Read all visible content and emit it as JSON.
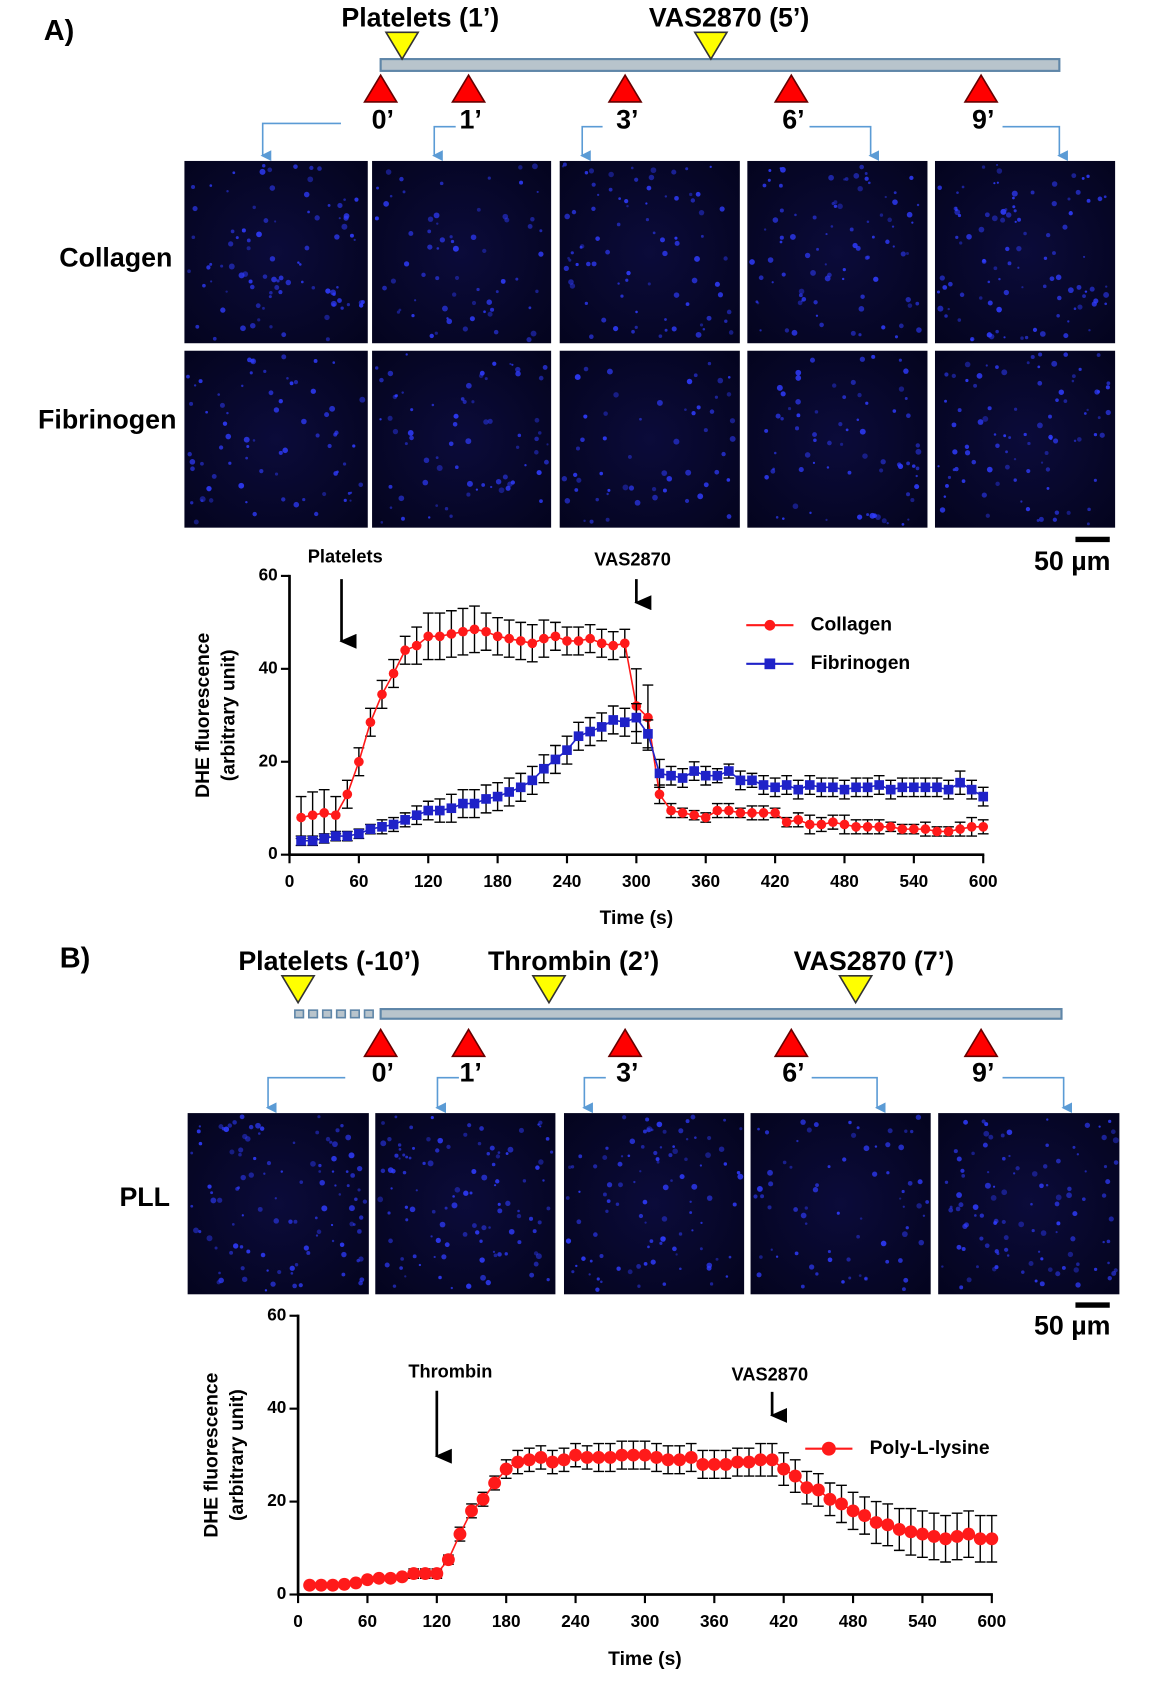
{
  "panels": [
    {
      "label": "A)",
      "events": [
        "Platelets (1’)",
        "VAS2870 (5’)"
      ],
      "timepoints": [
        "0’",
        "1’",
        "3’",
        "6’",
        "9’"
      ],
      "rows": [
        "Collagen",
        "Fibrinogen"
      ],
      "scale_bar": "50 µm"
    },
    {
      "label": "B)",
      "events": [
        "Platelets (-10’)",
        "Thrombin (2’)",
        "VAS2870 (7’)"
      ],
      "timepoints": [
        "0’",
        "1’",
        "3’",
        "6’",
        "9’"
      ],
      "rows": [
        "PLL"
      ],
      "scale_bar": "50 µm"
    }
  ],
  "chart_data": [
    {
      "type": "line",
      "x_label": "Time (s)",
      "y_label": [
        "DHE fluorescence",
        "(arbitrary unit)"
      ],
      "x": [
        10,
        20,
        30,
        40,
        50,
        60,
        70,
        80,
        90,
        100,
        110,
        120,
        130,
        140,
        150,
        160,
        170,
        180,
        190,
        200,
        210,
        220,
        230,
        240,
        250,
        260,
        270,
        280,
        290,
        300,
        310,
        320,
        330,
        340,
        350,
        360,
        370,
        380,
        390,
        400,
        410,
        420,
        430,
        440,
        450,
        460,
        470,
        480,
        490,
        500,
        510,
        520,
        530,
        540,
        550,
        560,
        570,
        580,
        590,
        600
      ],
      "series": [
        {
          "name": "Collagen",
          "color": "#ff1a1a",
          "marker": "circle",
          "values": [
            8,
            8.5,
            9,
            8.5,
            13,
            20,
            28.5,
            34.5,
            39,
            44,
            45,
            47,
            47,
            47.5,
            48,
            48.5,
            48,
            47,
            46.5,
            46,
            45.5,
            46.5,
            47,
            46,
            46,
            46.5,
            45.5,
            45,
            45.5,
            32,
            29.5,
            13,
            9.5,
            9,
            8.5,
            8,
            9.5,
            9.5,
            9,
            9,
            9,
            9,
            7,
            7.5,
            6.5,
            6.5,
            7,
            6.5,
            6,
            6,
            6,
            6,
            5.5,
            5.5,
            5.5,
            5,
            5,
            5.5,
            6,
            6
          ],
          "errors": [
            4.5,
            5,
            5,
            4,
            3,
            3,
            3,
            3,
            3,
            3,
            4,
            5,
            5,
            5,
            5,
            5,
            4,
            4,
            4,
            4,
            4,
            4,
            3,
            3,
            3,
            3,
            3,
            3,
            3,
            8,
            7,
            2,
            1.5,
            1,
            1,
            1,
            1.5,
            1.5,
            1,
            1.5,
            1.5,
            1,
            1,
            1.5,
            2,
            1.5,
            1.5,
            2,
            1.5,
            1.5,
            1.5,
            1,
            1,
            1,
            1.5,
            1,
            1,
            1.5,
            2,
            1.5
          ]
        },
        {
          "name": "Fibrinogen",
          "color": "#1f22c8",
          "marker": "square",
          "values": [
            3,
            3,
            3.5,
            4,
            4,
            4.5,
            5.5,
            6,
            6.5,
            7.5,
            8.5,
            9.5,
            9.5,
            10,
            11,
            11,
            12,
            12.5,
            13.5,
            14.5,
            16,
            18.5,
            20.5,
            22.5,
            25.5,
            26.5,
            27.5,
            29,
            28.5,
            29.5,
            26,
            17.5,
            17,
            16.5,
            18,
            17,
            17,
            18,
            16,
            16,
            15,
            14.5,
            15,
            14,
            15,
            14.5,
            14.5,
            14,
            14.5,
            14.5,
            15,
            14,
            14.5,
            14.5,
            14.5,
            14.5,
            14,
            15.5,
            14,
            12.5
          ],
          "errors": [
            1,
            1,
            1,
            1,
            1,
            1,
            1,
            1.5,
            1.5,
            1.5,
            2,
            2,
            2.5,
            3,
            3,
            3,
            3,
            3,
            3,
            3,
            3,
            3,
            3,
            3,
            3,
            3,
            3,
            3,
            3,
            3,
            3,
            3,
            2,
            2,
            2,
            2,
            1.5,
            1.5,
            2,
            1.5,
            2,
            2,
            2,
            2,
            2,
            2,
            2,
            2,
            2,
            2,
            2,
            2,
            2,
            2,
            2,
            2,
            2,
            2.5,
            2,
            2
          ]
        }
      ],
      "annotations": [
        {
          "text": "Platelets",
          "x": 45
        },
        {
          "text": "VAS2870",
          "x": 300
        }
      ],
      "xlim": [
        0,
        600
      ],
      "xticks": [
        0,
        60,
        120,
        180,
        240,
        300,
        360,
        420,
        480,
        540,
        600
      ],
      "ylim": [
        0,
        60
      ],
      "yticks": [
        0,
        20,
        40,
        60
      ]
    },
    {
      "type": "line",
      "x_label": "Time (s)",
      "y_label": [
        "DHE fluorescence",
        "(arbitrary unit)"
      ],
      "x": [
        10,
        20,
        30,
        40,
        50,
        60,
        70,
        80,
        90,
        100,
        110,
        120,
        130,
        140,
        150,
        160,
        170,
        180,
        190,
        200,
        210,
        220,
        230,
        240,
        250,
        260,
        270,
        280,
        290,
        300,
        310,
        320,
        330,
        340,
        350,
        360,
        370,
        380,
        390,
        400,
        410,
        420,
        430,
        440,
        450,
        460,
        470,
        480,
        490,
        500,
        510,
        520,
        530,
        540,
        550,
        560,
        570,
        580,
        590,
        600
      ],
      "series": [
        {
          "name": "Poly-L-lysine",
          "color": "#ff1a1a",
          "marker": "circle",
          "values": [
            2,
            2,
            2,
            2.2,
            2.5,
            3.2,
            3.5,
            3.5,
            3.8,
            4.5,
            4.5,
            4.5,
            7.5,
            13,
            18,
            20.5,
            24,
            27,
            28.5,
            29,
            29.5,
            28.5,
            29,
            30,
            29.5,
            29.5,
            29.5,
            30,
            30,
            30,
            29.5,
            29,
            29,
            29.5,
            28,
            28,
            28,
            28.5,
            28.5,
            29,
            29,
            27,
            25.5,
            23,
            22.5,
            20.5,
            19.5,
            18,
            17,
            15.5,
            15,
            14,
            13.5,
            13,
            12.5,
            12,
            12.5,
            13,
            12,
            12
          ],
          "errors": [
            0.3,
            0.3,
            0.3,
            0.3,
            0.3,
            0.4,
            0.4,
            0.5,
            0.6,
            1,
            1,
            1,
            1,
            1.5,
            1.5,
            1.5,
            1.5,
            2,
            2.5,
            2.5,
            2.5,
            2.5,
            2.5,
            2.5,
            2.5,
            3,
            3,
            3,
            3,
            3,
            3,
            3,
            3,
            3,
            3,
            3,
            3,
            3,
            3,
            3.5,
            3.5,
            3.5,
            3.5,
            3.5,
            3.5,
            3.5,
            4,
            4,
            4,
            4.5,
            4.5,
            4.5,
            5,
            5,
            5,
            5,
            5,
            5,
            5,
            5
          ]
        }
      ],
      "annotations": [
        {
          "text": "Thrombin",
          "x": 120
        },
        {
          "text": "VAS2870",
          "x": 410
        }
      ],
      "xlim": [
        0,
        600
      ],
      "xticks": [
        0,
        60,
        120,
        180,
        240,
        300,
        360,
        420,
        480,
        540,
        600
      ],
      "ylim": [
        0,
        60
      ],
      "yticks": [
        0,
        20,
        40,
        60
      ]
    }
  ]
}
